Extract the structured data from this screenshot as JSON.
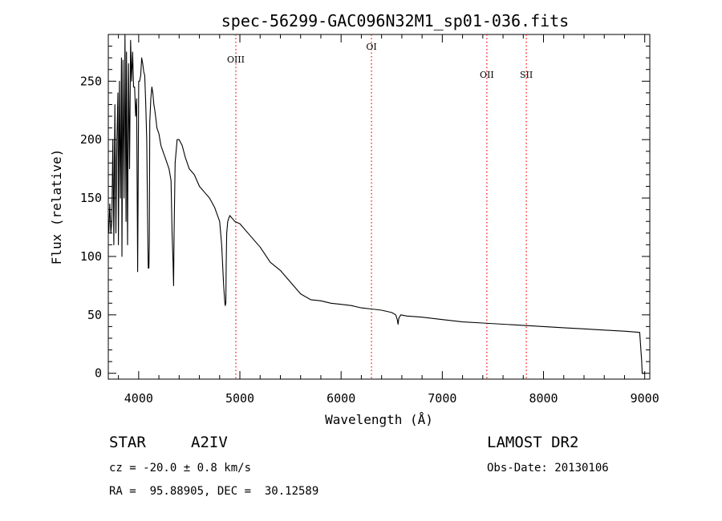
{
  "chart_data": {
    "type": "line",
    "title": "spec-56299-GAC096N32M1_sp01-036.fits",
    "xlabel": "Wavelength (Å)",
    "ylabel": "Flux (relative)",
    "xlim": [
      3700,
      9050
    ],
    "ylim": [
      -5,
      290
    ],
    "x_ticks": [
      4000,
      5000,
      6000,
      7000,
      8000,
      9000
    ],
    "y_ticks": [
      0,
      50,
      100,
      150,
      200,
      250
    ],
    "grid": false,
    "line_color": "#000000",
    "marker_color": "#ff0000",
    "emission_markers": [
      {
        "label": "OIII",
        "x": 4960
      },
      {
        "label": "OI",
        "x": 6300
      },
      {
        "label": "OII",
        "x": 7440
      },
      {
        "label": "SII",
        "x": 7830
      }
    ],
    "series": [
      {
        "x": [
          3705,
          3715,
          3725,
          3735,
          3745,
          3755,
          3765,
          3775,
          3785,
          3795,
          3800,
          3810,
          3820,
          3830,
          3835,
          3845,
          3855,
          3865,
          3875,
          3880,
          3890,
          3900,
          3910,
          3920,
          3930,
          3940,
          3950,
          3960,
          3970,
          3980,
          3990,
          4000,
          4010,
          4020,
          4030,
          4040,
          4050,
          4060,
          4070,
          4080,
          4090,
          4095,
          4101,
          4105,
          4110,
          4120,
          4130,
          4140,
          4150,
          4160,
          4170,
          4180,
          4200,
          4220,
          4240,
          4260,
          4280,
          4300,
          4320,
          4330,
          4340,
          4345,
          4350,
          4360,
          4380,
          4400,
          4430,
          4460,
          4500,
          4550,
          4600,
          4650,
          4700,
          4750,
          4800,
          4820,
          4840,
          4850,
          4855,
          4861,
          4865,
          4870,
          4880,
          4900,
          4950,
          5000,
          5100,
          5200,
          5300,
          5400,
          5500,
          5600,
          5700,
          5800,
          5900,
          6000,
          6100,
          6200,
          6300,
          6400,
          6500,
          6540,
          6555,
          6563,
          6570,
          6590,
          6650,
          6800,
          7000,
          7200,
          7400,
          7600,
          7800,
          8000,
          8200,
          8400,
          8600,
          8800,
          8950,
          8970,
          8975,
          9000
        ],
        "y": [
          120,
          145,
          120,
          130,
          200,
          110,
          230,
          120,
          200,
          240,
          110,
          250,
          150,
          270,
          100,
          268,
          150,
          290,
          130,
          275,
          110,
          265,
          175,
          285,
          250,
          275,
          245,
          245,
          220,
          235,
          87,
          250,
          250,
          255,
          270,
          265,
          258,
          255,
          230,
          200,
          120,
          90,
          90,
          110,
          215,
          235,
          245,
          240,
          230,
          225,
          218,
          210,
          205,
          195,
          190,
          185,
          180,
          175,
          165,
          120,
          95,
          75,
          120,
          180,
          200,
          200,
          195,
          185,
          175,
          170,
          160,
          155,
          150,
          142,
          130,
          110,
          75,
          62,
          58,
          60,
          95,
          120,
          130,
          135,
          130,
          128,
          118,
          108,
          95,
          88,
          78,
          68,
          63,
          62,
          60,
          59,
          58,
          56,
          55,
          54,
          52,
          50,
          46,
          42,
          47,
          50,
          49,
          48,
          46,
          44,
          43,
          42,
          41,
          40,
          39,
          38,
          37,
          36,
          35,
          10,
          0,
          0
        ]
      }
    ]
  },
  "footer": {
    "object_class": "STAR",
    "subclass": "A2IV",
    "survey": "LAMOST DR2",
    "cz": "cz = -20.0 ± 0.8 km/s",
    "obs_date": "Obs-Date: 20130106",
    "coords": "RA =  95.88905, DEC =  30.12589"
  }
}
